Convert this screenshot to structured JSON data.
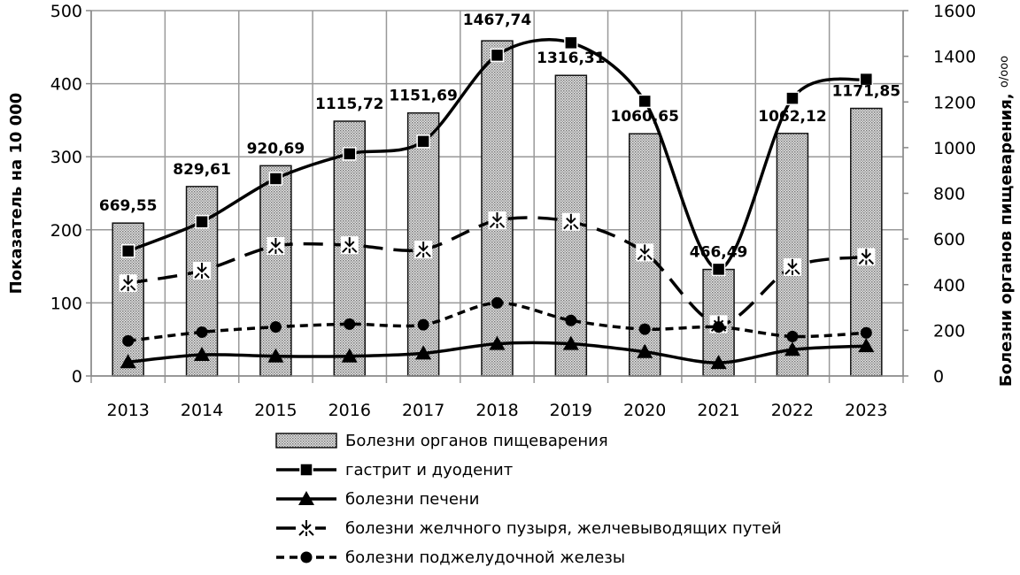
{
  "chart_data": {
    "type": "bar+line",
    "categories": [
      "2013",
      "2014",
      "2015",
      "2016",
      "2017",
      "2018",
      "2019",
      "2020",
      "2021",
      "2022",
      "2023"
    ],
    "ylabel": "Показатель на 10 000",
    "ylabel_right": "Болезни органов пищеварения,",
    "ylabel_right_unit": "о/ооо",
    "ylim": [
      0,
      500
    ],
    "yticks": [
      0,
      100,
      200,
      300,
      400,
      500
    ],
    "ylim_right": [
      0,
      1600
    ],
    "yticks_right": [
      0,
      200,
      400,
      600,
      800,
      1000,
      1200,
      1400,
      1600
    ],
    "grid": true,
    "legend_position": "bottom",
    "bar_series": {
      "name": "Болезни органов пищеварения",
      "axis": "right",
      "values": [
        669.55,
        829.61,
        920.69,
        1115.72,
        1151.69,
        1467.74,
        1316.31,
        1060.65,
        466.49,
        1062.12,
        1171.85
      ],
      "labels": [
        "669,55",
        "829,61",
        "920,69",
        "1115,72",
        "1151,69",
        "1467,74",
        "1316,31",
        "1060,65",
        "466,49",
        "1062,12",
        "1171,85"
      ]
    },
    "series": [
      {
        "name": "гастрит и дуоденит",
        "axis": "left",
        "marker": "square",
        "dash": "solid",
        "values": [
          171,
          211,
          270,
          304,
          321,
          439,
          456,
          376,
          146,
          380,
          406
        ]
      },
      {
        "name": "болезни печени",
        "axis": "left",
        "marker": "triangle",
        "dash": "solid",
        "values": [
          19,
          29,
          27,
          27,
          31,
          44,
          44,
          33,
          18,
          36,
          41
        ]
      },
      {
        "name": "болезни желчного пузыря, желчевыводящих  путей",
        "axis": "left",
        "marker": "star",
        "dash": "long",
        "values": [
          127,
          144,
          178,
          179,
          173,
          213,
          211,
          169,
          71,
          149,
          163
        ]
      },
      {
        "name": "болезни поджелудочной железы",
        "axis": "left",
        "marker": "circle",
        "dash": "short",
        "values": [
          48,
          60,
          67,
          71,
          70,
          100,
          76,
          64,
          67,
          54,
          59
        ]
      }
    ]
  }
}
